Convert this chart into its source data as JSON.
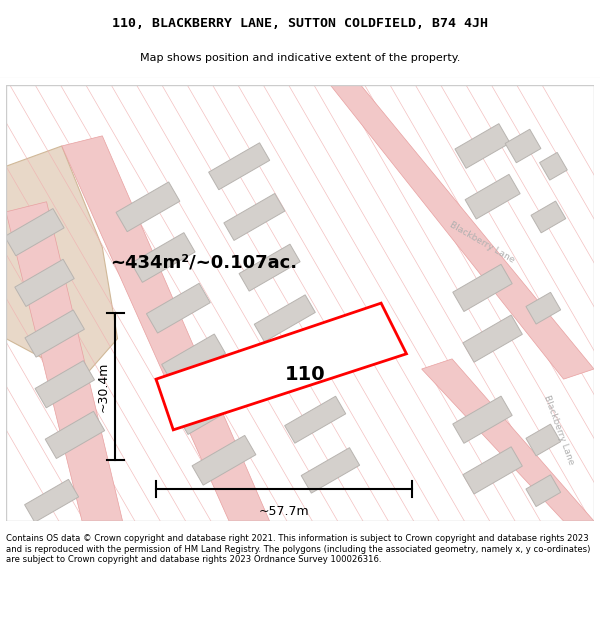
{
  "title_line1": "110, BLACKBERRY LANE, SUTTON COLDFIELD, B74 4JH",
  "title_line2": "Map shows position and indicative extent of the property.",
  "footer_text": "Contains OS data © Crown copyright and database right 2021. This information is subject to Crown copyright and database rights 2023 and is reproduced with the permission of HM Land Registry. The polygons (including the associated geometry, namely x, y co-ordinates) are subject to Crown copyright and database rights 2023 Ordnance Survey 100026316.",
  "area_label": "~434m²/~0.107ac.",
  "width_label": "~57.7m",
  "height_label": "~30.4m",
  "plot_number": "110",
  "map_bg": "#ffffff",
  "road_color": "#f2c8c8",
  "road_outline": "#e8a0a0",
  "building_fill": "#d4d0cc",
  "building_outline": "#b8b4b0",
  "highlight_fill": "#ffffff",
  "highlight_outline": "#ff0000",
  "street_label_color": "#b0b0b0",
  "grid_line_color": "#f0b0b0",
  "tan_area_color": "#e8d8c8",
  "tan_area_outline": "#d0b898"
}
